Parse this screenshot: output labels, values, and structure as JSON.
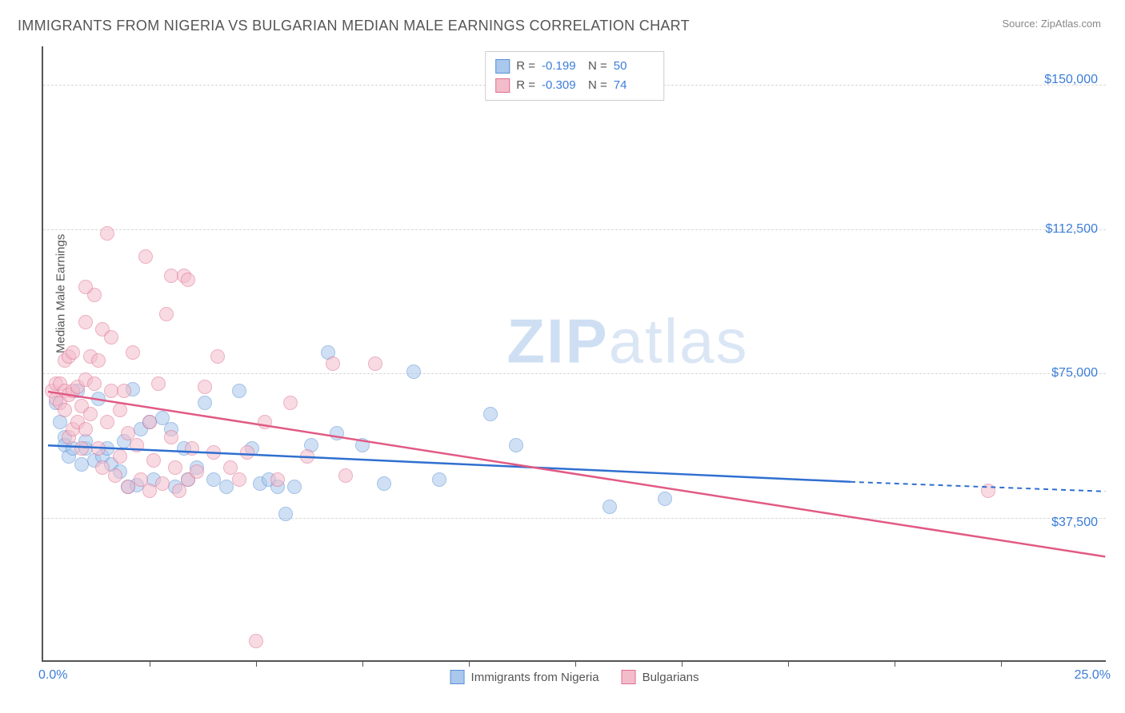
{
  "title": "IMMIGRANTS FROM NIGERIA VS BULGARIAN MEDIAN MALE EARNINGS CORRELATION CHART",
  "source_label": "Source: ZipAtlas.com",
  "ylabel": "Median Male Earnings",
  "watermark_a": "ZIP",
  "watermark_b": "atlas",
  "chart": {
    "type": "scatter",
    "xlim": [
      0,
      25
    ],
    "ylim": [
      0,
      160000
    ],
    "x_min_label": "0.0%",
    "x_max_label": "25.0%",
    "xtick_positions": [
      2.5,
      5.0,
      7.5,
      10.0,
      12.5,
      15.0,
      17.5,
      20.0,
      22.5
    ],
    "ygrid": [
      {
        "value": 37500,
        "label": "$37,500"
      },
      {
        "value": 75000,
        "label": "$75,000"
      },
      {
        "value": 112500,
        "label": "$112,500"
      },
      {
        "value": 150000,
        "label": "$150,000"
      }
    ],
    "background_color": "#ffffff",
    "grid_color": "#d8d8d8",
    "axis_color": "#555555",
    "title_color": "#555555",
    "title_fontsize": 18,
    "label_fontsize": 15,
    "tick_label_color": "#3b7dd8",
    "point_radius": 9,
    "point_opacity": 0.55,
    "trend_line_width": 2.5
  },
  "series": [
    {
      "name": "Immigrants from Nigeria",
      "key": "nigeria",
      "R": "-0.199",
      "N": "50",
      "fill": "#a9c8ec",
      "stroke": "#5a8fd6",
      "line_color": "#2f6fd0",
      "trend": {
        "x1": 0.1,
        "y1": 56000,
        "x2": 19.0,
        "y2": 46500,
        "dash_x2": 25.0,
        "dash_y2": 44000
      },
      "points": [
        [
          0.3,
          67000
        ],
        [
          0.4,
          62000
        ],
        [
          0.5,
          58000
        ],
        [
          0.5,
          56000
        ],
        [
          0.6,
          53000
        ],
        [
          0.7,
          55000
        ],
        [
          0.8,
          70000
        ],
        [
          0.9,
          51000
        ],
        [
          1.0,
          55000
        ],
        [
          1.0,
          57000
        ],
        [
          1.2,
          52000
        ],
        [
          1.3,
          68000
        ],
        [
          1.4,
          53000
        ],
        [
          1.5,
          55000
        ],
        [
          1.6,
          51000
        ],
        [
          1.8,
          49000
        ],
        [
          1.9,
          57000
        ],
        [
          2.0,
          45000
        ],
        [
          2.1,
          70500
        ],
        [
          2.2,
          45500
        ],
        [
          2.3,
          60000
        ],
        [
          2.5,
          62000
        ],
        [
          2.6,
          47000
        ],
        [
          2.8,
          63000
        ],
        [
          3.0,
          60000
        ],
        [
          3.1,
          45000
        ],
        [
          3.3,
          55000
        ],
        [
          3.4,
          47000
        ],
        [
          3.6,
          50000
        ],
        [
          3.8,
          67000
        ],
        [
          4.0,
          47000
        ],
        [
          4.3,
          45000
        ],
        [
          4.6,
          70000
        ],
        [
          4.9,
          55000
        ],
        [
          5.1,
          46000
        ],
        [
          5.3,
          47000
        ],
        [
          5.5,
          45000
        ],
        [
          5.7,
          38000
        ],
        [
          5.9,
          45000
        ],
        [
          6.3,
          56000
        ],
        [
          6.7,
          80000
        ],
        [
          6.9,
          59000
        ],
        [
          7.5,
          56000
        ],
        [
          8.7,
          75000
        ],
        [
          9.3,
          47000
        ],
        [
          10.5,
          64000
        ],
        [
          11.1,
          56000
        ],
        [
          13.3,
          40000
        ],
        [
          14.6,
          42000
        ],
        [
          8.0,
          46000
        ]
      ]
    },
    {
      "name": "Bulgarians",
      "key": "bulgarians",
      "R": "-0.309",
      "N": "74",
      "fill": "#f3bccb",
      "stroke": "#e06f8f",
      "line_color": "#e15a84",
      "trend": {
        "x1": 0.1,
        "y1": 70000,
        "x2": 25.0,
        "y2": 27000
      },
      "points": [
        [
          0.2,
          70000
        ],
        [
          0.3,
          68000
        ],
        [
          0.3,
          72000
        ],
        [
          0.4,
          72000
        ],
        [
          0.4,
          67000
        ],
        [
          0.5,
          78000
        ],
        [
          0.5,
          70000
        ],
        [
          0.5,
          65000
        ],
        [
          0.6,
          79000
        ],
        [
          0.6,
          69000
        ],
        [
          0.6,
          58000
        ],
        [
          0.7,
          80000
        ],
        [
          0.7,
          70000
        ],
        [
          0.7,
          60000
        ],
        [
          0.8,
          62000
        ],
        [
          0.8,
          71000
        ],
        [
          0.9,
          55000
        ],
        [
          0.9,
          66000
        ],
        [
          1.0,
          88000
        ],
        [
          1.0,
          73000
        ],
        [
          1.0,
          60000
        ],
        [
          1.1,
          79000
        ],
        [
          1.1,
          64000
        ],
        [
          1.2,
          95000
        ],
        [
          1.2,
          72000
        ],
        [
          1.3,
          55000
        ],
        [
          1.3,
          78000
        ],
        [
          1.4,
          50000
        ],
        [
          1.5,
          111000
        ],
        [
          1.5,
          62000
        ],
        [
          1.6,
          70000
        ],
        [
          1.7,
          48000
        ],
        [
          1.8,
          65000
        ],
        [
          1.8,
          53000
        ],
        [
          1.9,
          70000
        ],
        [
          2.0,
          45000
        ],
        [
          2.0,
          59000
        ],
        [
          2.1,
          80000
        ],
        [
          2.2,
          56000
        ],
        [
          2.3,
          47000
        ],
        [
          2.4,
          105000
        ],
        [
          2.5,
          62000
        ],
        [
          2.5,
          44000
        ],
        [
          2.6,
          52000
        ],
        [
          2.7,
          72000
        ],
        [
          2.8,
          46000
        ],
        [
          2.9,
          90000
        ],
        [
          3.0,
          58000
        ],
        [
          3.0,
          100000
        ],
        [
          3.1,
          50000
        ],
        [
          3.2,
          44000
        ],
        [
          3.3,
          100000
        ],
        [
          3.4,
          47000
        ],
        [
          3.4,
          99000
        ],
        [
          3.5,
          55000
        ],
        [
          3.6,
          49000
        ],
        [
          3.8,
          71000
        ],
        [
          4.0,
          54000
        ],
        [
          4.1,
          79000
        ],
        [
          4.4,
          50000
        ],
        [
          4.6,
          47000
        ],
        [
          4.8,
          54000
        ],
        [
          5.0,
          5000
        ],
        [
          5.2,
          62000
        ],
        [
          5.5,
          47000
        ],
        [
          5.8,
          67000
        ],
        [
          6.2,
          53000
        ],
        [
          6.8,
          77000
        ],
        [
          7.1,
          48000
        ],
        [
          7.8,
          77000
        ],
        [
          1.4,
          86000
        ],
        [
          1.6,
          84000
        ],
        [
          1.0,
          97000
        ],
        [
          22.2,
          44000
        ]
      ]
    }
  ],
  "legend_top": {
    "r_label": "R =",
    "n_label": "N ="
  }
}
